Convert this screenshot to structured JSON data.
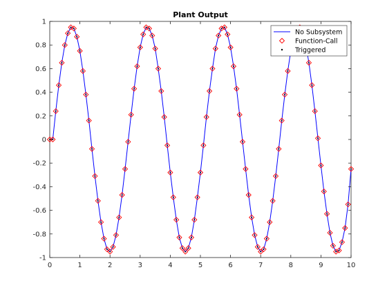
{
  "chart_data": {
    "type": "line",
    "title": "Plant Output",
    "xlabel": "",
    "ylabel": "",
    "xlim": [
      0,
      10
    ],
    "ylim": [
      -1,
      1
    ],
    "x_ticks": [
      "0",
      "1",
      "2",
      "3",
      "4",
      "5",
      "6",
      "7",
      "8",
      "9",
      "10"
    ],
    "y_ticks": [
      "-1",
      "-0.8",
      "-0.6",
      "-0.4",
      "-0.2",
      "0",
      "0.2",
      "0.4",
      "0.6",
      "0.8",
      "1"
    ],
    "grid": false,
    "legend_position": "top-right",
    "series": [
      {
        "name": "No Subsystem",
        "style": "line",
        "color": "#0000ff",
        "x": [
          0,
          0.1,
          0.2,
          0.3,
          0.4,
          0.5,
          0.6,
          0.7,
          0.8,
          0.9,
          1.0,
          1.1,
          1.2,
          1.3,
          1.4,
          1.5,
          1.6,
          1.7,
          1.8,
          1.9,
          2.0,
          2.1,
          2.2,
          2.3,
          2.4,
          2.5,
          2.6,
          2.7,
          2.8,
          2.9,
          3.0,
          3.1,
          3.2,
          3.3,
          3.4,
          3.5,
          3.6,
          3.7,
          3.8,
          3.9,
          4.0,
          4.1,
          4.2,
          4.3,
          4.4,
          4.5,
          4.6,
          4.7,
          4.8,
          4.9,
          5.0,
          5.1,
          5.2,
          5.3,
          5.4,
          5.5,
          5.6,
          5.7,
          5.8,
          5.9,
          6.0,
          6.1,
          6.2,
          6.3,
          6.4,
          6.5,
          6.6,
          6.7,
          6.8,
          6.9,
          7.0,
          7.1,
          7.2,
          7.3,
          7.4,
          7.5,
          7.6,
          7.7,
          7.8,
          7.9,
          8.0,
          8.1,
          8.2,
          8.3,
          8.4,
          8.5,
          8.6,
          8.7,
          8.8,
          8.9,
          9.0,
          9.1,
          9.2,
          9.3,
          9.4,
          9.5,
          9.6,
          9.7,
          9.8,
          9.9,
          10.0
        ],
        "y": [
          0.0,
          0.0,
          0.24,
          0.46,
          0.65,
          0.8,
          0.9,
          0.95,
          0.94,
          0.87,
          0.75,
          0.58,
          0.38,
          0.16,
          -0.08,
          -0.31,
          -0.52,
          -0.7,
          -0.84,
          -0.93,
          -0.95,
          -0.91,
          -0.81,
          -0.66,
          -0.47,
          -0.25,
          -0.02,
          0.21,
          0.43,
          0.62,
          0.78,
          0.89,
          0.95,
          0.94,
          0.88,
          0.77,
          0.6,
          0.41,
          0.19,
          -0.05,
          -0.28,
          -0.49,
          -0.68,
          -0.83,
          -0.92,
          -0.95,
          -0.92,
          -0.83,
          -0.68,
          -0.49,
          -0.28,
          -0.05,
          0.19,
          0.41,
          0.6,
          0.77,
          0.88,
          0.94,
          0.95,
          0.89,
          0.78,
          0.62,
          0.43,
          0.21,
          -0.02,
          -0.25,
          -0.47,
          -0.66,
          -0.81,
          -0.91,
          -0.95,
          -0.93,
          -0.84,
          -0.7,
          -0.52,
          -0.31,
          -0.08,
          0.16,
          0.38,
          0.58,
          0.75,
          0.87,
          0.94,
          0.95,
          0.9,
          0.8,
          0.65,
          0.46,
          0.24,
          0.01,
          -0.22,
          -0.44,
          -0.63,
          -0.79,
          -0.9,
          -0.95,
          -0.94,
          -0.87,
          -0.75,
          -0.55,
          -0.25
        ]
      },
      {
        "name": "Function-Call",
        "style": "diamond-marker",
        "color": "#ff0000"
      },
      {
        "name": "Triggered",
        "style": "dot-marker",
        "color": "#000000"
      }
    ]
  }
}
